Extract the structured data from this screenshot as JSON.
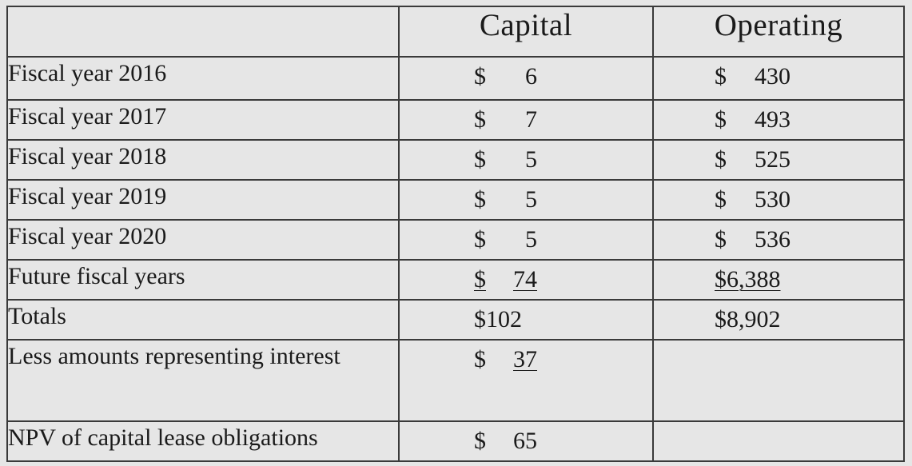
{
  "table": {
    "headers": [
      "",
      "Capital",
      "Operating"
    ],
    "rows": [
      {
        "label": "Fiscal year 2016",
        "capital_symbol": "$",
        "capital": "6",
        "operating_symbol": "$",
        "operating": "430"
      },
      {
        "label": "Fiscal year 2017",
        "capital_symbol": "$",
        "capital": "7",
        "operating_symbol": "$",
        "operating": "493"
      },
      {
        "label": "Fiscal year 2018",
        "capital_symbol": "$",
        "capital": "5",
        "operating_symbol": "$",
        "operating": "525"
      },
      {
        "label": "Fiscal year 2019",
        "capital_symbol": "$",
        "capital": "5",
        "operating_symbol": "$",
        "operating": "530"
      },
      {
        "label": "Fiscal year 2020",
        "capital_symbol": "$",
        "capital": "5",
        "operating_symbol": "$",
        "operating": "536"
      },
      {
        "label": "Future fiscal years",
        "capital_symbol": "$",
        "capital": "74",
        "operating": "$6,388"
      },
      {
        "label": "Totals",
        "capital": "$102",
        "operating": "$8,902"
      },
      {
        "label": "Less amounts representing interest",
        "capital_symbol": "$",
        "capital": "37",
        "operating": ""
      },
      {
        "label": "NPV of capital lease obligations",
        "capital_symbol": "$",
        "capital": "65",
        "operating": ""
      }
    ]
  }
}
